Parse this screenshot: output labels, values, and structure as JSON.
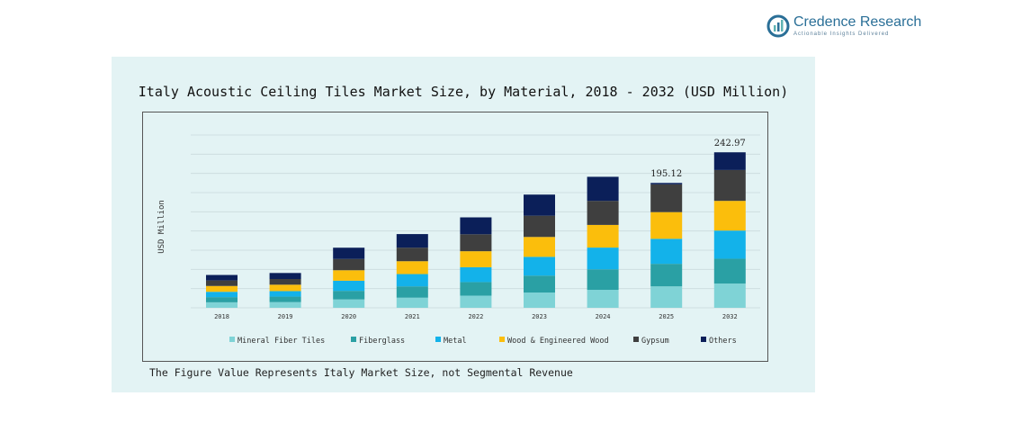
{
  "brand": {
    "name": "Credence Research",
    "tagline": "Actionable Insights Delivered"
  },
  "footnote": "The Figure Value Represents Italy Market Size, not Segmental Revenue",
  "chart_data": {
    "type": "bar",
    "stacked": true,
    "title": "Italy Acoustic Ceiling Tiles Market Size, by Material, 2018 - 2032 (USD Million)",
    "xlabel": "",
    "ylabel": "USD Million",
    "ylim": [
      0,
      270
    ],
    "grid": true,
    "legend_position": "bottom",
    "categories": [
      "2018",
      "2019",
      "2020",
      "2021",
      "2022",
      "2023",
      "2024",
      "2025",
      "2032"
    ],
    "series": [
      {
        "name": "Mineral Fiber Tiles",
        "color": "#7fd3d6",
        "values": [
          8.6,
          8.9,
          13.1,
          15.8,
          19.0,
          23.9,
          28.1,
          33.5,
          37.9
        ]
      },
      {
        "name": "Fiberglass",
        "color": "#2aa0a4",
        "values": [
          8.1,
          8.6,
          13.4,
          17.7,
          21.2,
          26.4,
          32.0,
          35.2,
          38.8
        ]
      },
      {
        "name": "Metal",
        "color": "#13b2ea",
        "values": [
          8.3,
          8.6,
          15.8,
          19.2,
          23.2,
          29.3,
          34.0,
          39.1,
          44.0
        ]
      },
      {
        "name": "Wood & Engineered Wood",
        "color": "#fbbe0c",
        "values": [
          9.1,
          10.0,
          16.4,
          20.1,
          25.0,
          31.1,
          35.4,
          41.7,
          46.4
        ]
      },
      {
        "name": "Gypsum",
        "color": "#3f3f3f",
        "values": [
          8.6,
          8.9,
          17.6,
          21.2,
          26.5,
          33.2,
          37.6,
          43.4,
          48.2
        ]
      },
      {
        "name": "Others",
        "color": "#0b1f59",
        "values": [
          8.6,
          9.4,
          17.6,
          21.2,
          26.4,
          33.0,
          37.6,
          2.22,
          27.67
        ]
      }
    ],
    "data_labels": [
      {
        "category": "2025",
        "value": "195.12"
      },
      {
        "category": "2032",
        "value": "242.97"
      }
    ]
  }
}
